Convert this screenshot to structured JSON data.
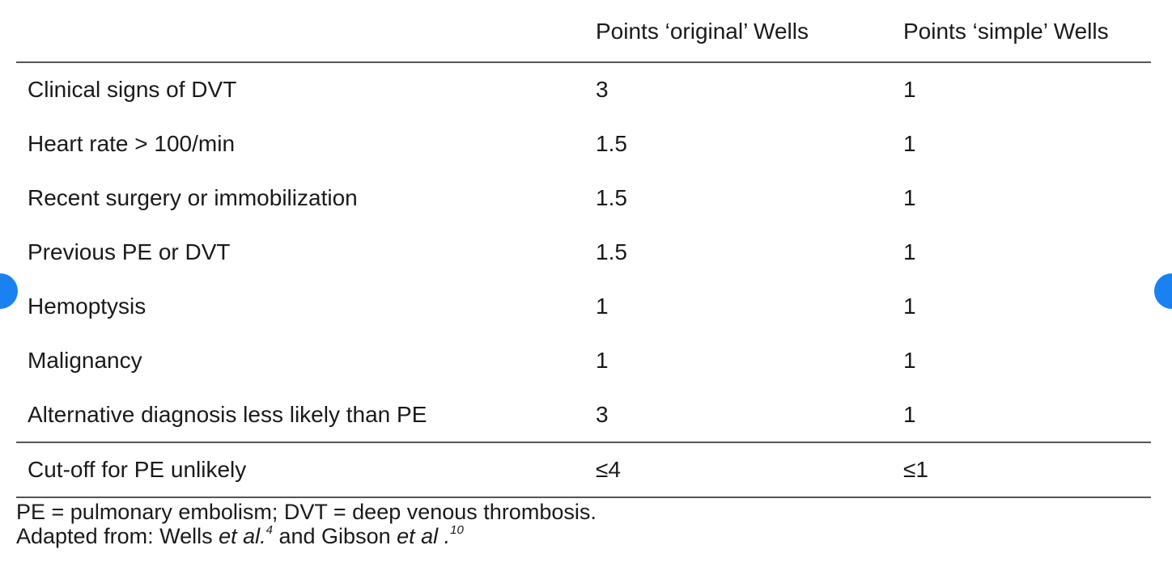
{
  "table": {
    "headers": [
      "",
      "Points ‘original’ Wells",
      "Points ‘simple’ Wells"
    ],
    "rows": [
      {
        "criterion": "Clinical signs of DVT",
        "original": "3",
        "simple": "1"
      },
      {
        "criterion": "Heart rate > 100/min",
        "original": "1.5",
        "simple": "1"
      },
      {
        "criterion": "Recent surgery or immobilization",
        "original": "1.5",
        "simple": "1"
      },
      {
        "criterion": "Previous PE or DVT",
        "original": "1.5",
        "simple": "1"
      },
      {
        "criterion": "Hemoptysis",
        "original": "1",
        "simple": "1"
      },
      {
        "criterion": "Malignancy",
        "original": "1",
        "simple": "1"
      },
      {
        "criterion": "Alternative diagnosis less likely than PE",
        "original": "3",
        "simple": "1"
      }
    ],
    "cutoff": {
      "criterion": "Cut-off for PE unlikely",
      "original": "≤4",
      "simple": "≤1"
    }
  },
  "notes": {
    "abbreviations": "PE = pulmonary embolism; DVT = deep venous thrombosis.",
    "adapted_prefix": "Adapted from: Wells ",
    "adapted_etal1": "et al.",
    "adapted_ref1": "4",
    "adapted_mid": " and Gibson ",
    "adapted_etal2": "et al .",
    "adapted_ref2": "10"
  },
  "nav": {
    "left_icon": "previous-arrow-icon",
    "right_icon": "next-arrow-icon",
    "accent_color": "#1a82f0"
  }
}
